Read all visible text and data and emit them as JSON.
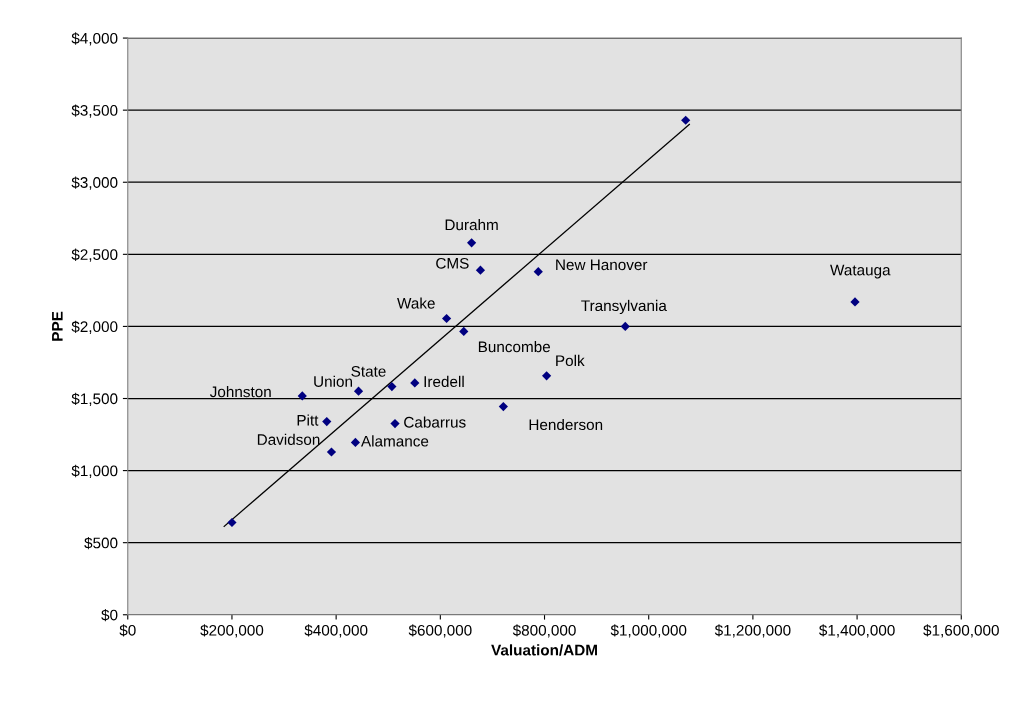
{
  "chart_data": {
    "type": "scatter",
    "xlabel": "Valuation/ADM",
    "ylabel": "PPE",
    "xlim": [
      0,
      1600000
    ],
    "ylim": [
      0,
      4000
    ],
    "xticks": [
      {
        "value": 0,
        "label": "$0"
      },
      {
        "value": 200000,
        "label": "$200,000"
      },
      {
        "value": 400000,
        "label": "$400,000"
      },
      {
        "value": 600000,
        "label": "$600,000"
      },
      {
        "value": 800000,
        "label": "$800,000"
      },
      {
        "value": 1000000,
        "label": "$1,000,000"
      },
      {
        "value": 1200000,
        "label": "$1,200,000"
      },
      {
        "value": 1400000,
        "label": "$1,400,000"
      },
      {
        "value": 1600000,
        "label": "$1,600,000"
      }
    ],
    "yticks": [
      {
        "value": 0,
        "label": "$0"
      },
      {
        "value": 500,
        "label": "$500"
      },
      {
        "value": 1000,
        "label": "$1,000"
      },
      {
        "value": 1500,
        "label": "$1,500"
      },
      {
        "value": 2000,
        "label": "$2,000"
      },
      {
        "value": 2500,
        "label": "$2,500"
      },
      {
        "value": 3000,
        "label": "$3,000"
      },
      {
        "value": 3500,
        "label": "$3,500"
      },
      {
        "value": 4000,
        "label": "$4,000"
      }
    ],
    "grid": "y",
    "legend": false,
    "marker": "diamond",
    "series": [
      {
        "color": "#000080",
        "x": [
          200000,
          660000,
          677000,
          788000,
          612000,
          645000,
          955000,
          804000,
          335000,
          443000,
          507000,
          551000,
          721000,
          382000,
          513000,
          437000,
          391000,
          1071000,
          1396000
        ],
        "values": [
          640,
          2580,
          2390,
          2380,
          2055,
          1965,
          2000,
          1657,
          1518,
          1551,
          1583,
          1608,
          1444,
          1340,
          1326,
          1195,
          1129,
          3430,
          2170
        ]
      },
      {
        "type": "line",
        "color": "#000000",
        "marker": "none",
        "line_style": "solid",
        "x": [
          185000,
          1078000
        ],
        "values": [
          613,
          3401
        ]
      }
    ],
    "annotations": [
      {
        "text": "Durahm",
        "x": 660000,
        "y": 2580
      },
      {
        "text": "CMS",
        "x": 677000,
        "y": 2390
      },
      {
        "text": "New Hanover",
        "x": 788000,
        "y": 2380
      },
      {
        "text": "Wake",
        "x": 612000,
        "y": 2055
      },
      {
        "text": "Buncombe",
        "x": 645000,
        "y": 1965
      },
      {
        "text": "Transylvania",
        "x": 955000,
        "y": 2000
      },
      {
        "text": "Polk",
        "x": 804000,
        "y": 1657
      },
      {
        "text": "Johnston",
        "x": 335000,
        "y": 1518
      },
      {
        "text": "Union",
        "x": 443000,
        "y": 1551
      },
      {
        "text": "State",
        "x": 507000,
        "y": 1583
      },
      {
        "text": "Iredell",
        "x": 551000,
        "y": 1608
      },
      {
        "text": "Henderson",
        "x": 721000,
        "y": 1444
      },
      {
        "text": "Pitt",
        "x": 382000,
        "y": 1340
      },
      {
        "text": "Cabarrus",
        "x": 513000,
        "y": 1326
      },
      {
        "text": "Alamance",
        "x": 437000,
        "y": 1195
      },
      {
        "text": "Davidson",
        "x": 391000,
        "y": 1129
      },
      {
        "text": "Watauga",
        "x": 1396000,
        "y": 2170
      }
    ]
  }
}
